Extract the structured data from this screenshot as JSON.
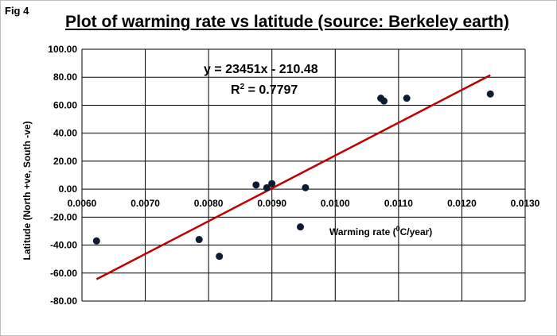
{
  "figure_label": "Fig 4",
  "chart_data": {
    "type": "scatter",
    "title": "Plot of warming  rate vs latitude (source: Berkeley earth)",
    "xlabel_parts": [
      "Warming rate (",
      "0",
      "C/year)"
    ],
    "ylabel": "Latitude (North +ve, South -ve)",
    "xlim": [
      0.006,
      0.013
    ],
    "ylim": [
      -80,
      100
    ],
    "x_ticks": [
      0.006,
      0.007,
      0.008,
      0.009,
      0.01,
      0.011,
      0.012,
      0.013
    ],
    "x_tick_labels": [
      "0.0060",
      "0.0070",
      "0.0080",
      "0.0090",
      "0.0100",
      "0.0110",
      "0.0120",
      "0.0130"
    ],
    "y_ticks": [
      -80,
      -60,
      -40,
      -20,
      0,
      20,
      40,
      60,
      80,
      100
    ],
    "y_tick_labels": [
      "-80.00",
      "-60.00",
      "-40.00",
      "-20.00",
      "0.00",
      "20.00",
      "40.00",
      "60.00",
      "80.00",
      "100.00"
    ],
    "grid": true,
    "points": [
      {
        "x": 0.00623,
        "y": -37
      },
      {
        "x": 0.00785,
        "y": -36
      },
      {
        "x": 0.00817,
        "y": -48
      },
      {
        "x": 0.00875,
        "y": 3
      },
      {
        "x": 0.00892,
        "y": 1
      },
      {
        "x": 0.009,
        "y": 4
      },
      {
        "x": 0.00945,
        "y": -27
      },
      {
        "x": 0.00953,
        "y": 1
      },
      {
        "x": 0.01072,
        "y": 65
      },
      {
        "x": 0.01077,
        "y": 63
      },
      {
        "x": 0.01113,
        "y": 65
      },
      {
        "x": 0.01245,
        "y": 68
      }
    ],
    "trendline": {
      "slope": 23451,
      "intercept": -210.48,
      "x_range": [
        0.00623,
        0.01245
      ],
      "color": "#c00000"
    },
    "equation_text": "y = 23451x - 210.48",
    "r2_label": "R",
    "r2_superscript": "2",
    "r2_value_text": " = 0.7797",
    "marker_color": "#0d1b33",
    "grid_color": "#000000"
  }
}
